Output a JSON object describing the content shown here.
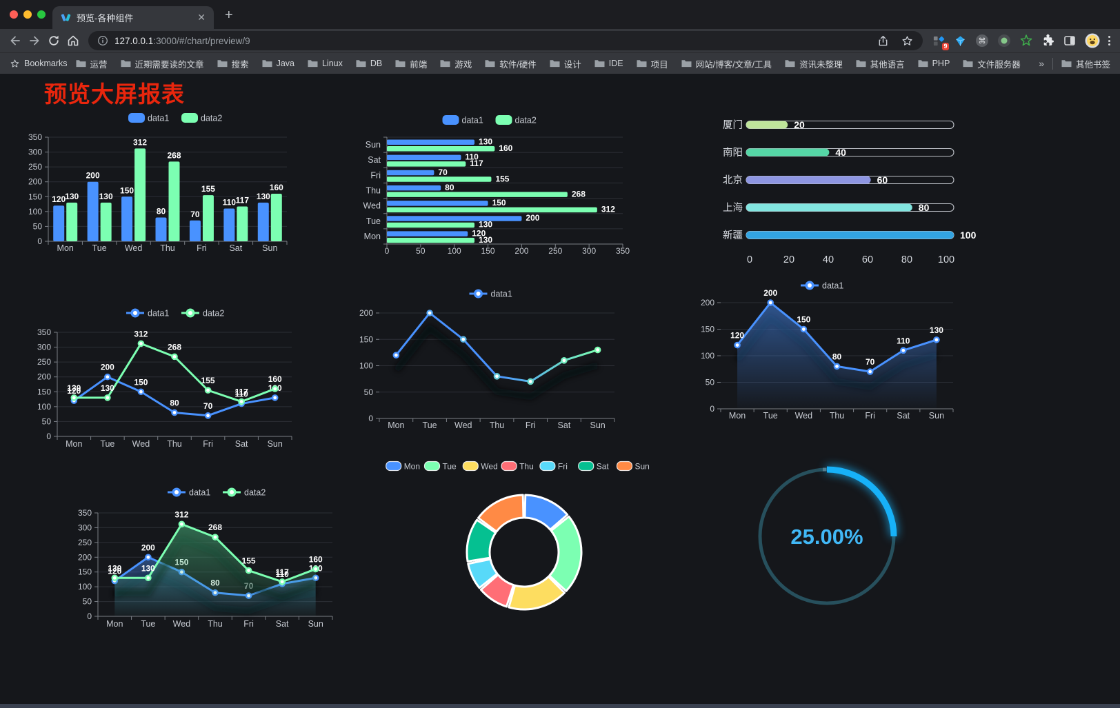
{
  "browser": {
    "traffic_lights": [
      "#ff5f57",
      "#febc2e",
      "#28c840"
    ],
    "tab": {
      "title": "预览-各种组件",
      "close_icon": "✕",
      "new_tab_icon": "+"
    },
    "address": {
      "host": "127.0.0.1",
      "rest": ":3000/#/chart/preview/9"
    },
    "bookmarks_label": "Bookmarks",
    "bookmarks": [
      "运营",
      "近期需要读的文章",
      "搜索",
      "Java",
      "Linux",
      "DB",
      "前端",
      "游戏",
      "软件/硬件",
      "设计",
      "IDE",
      "项目",
      "网站/博客/文章/工具",
      "资讯未整理",
      "其他语言",
      "PHP",
      "文件服务器"
    ],
    "bookmarks_overflow": "»",
    "other_bookmarks": "其他书签",
    "extension_badge": "9",
    "theme": {
      "frame": "#1c1d21",
      "toolbar": "#35373c",
      "field": "#202125"
    }
  },
  "page": {
    "title": "预览大屏报表",
    "title_color": "#e9260d",
    "background": "#15171b",
    "accent_blue": "#4992ff",
    "accent_green": "#7cffb2"
  },
  "chart_data": [
    {
      "id": "c1",
      "type": "bar",
      "title": "",
      "legend_position": "top",
      "categories": [
        "Mon",
        "Tue",
        "Wed",
        "Thu",
        "Fri",
        "Sat",
        "Sun"
      ],
      "series": [
        {
          "name": "data1",
          "color": "#4992ff",
          "values": [
            120,
            200,
            150,
            80,
            70,
            110,
            130
          ]
        },
        {
          "name": "data2",
          "color": "#7cffb2",
          "values": [
            130,
            130,
            312,
            268,
            155,
            117,
            160
          ]
        }
      ],
      "ylim": [
        0,
        350
      ],
      "ystep": 50,
      "labels": true,
      "grid": true
    },
    {
      "id": "c2",
      "type": "bar-horizontal",
      "title": "",
      "legend_position": "top",
      "categories": [
        "Mon",
        "Tue",
        "Wed",
        "Thu",
        "Fri",
        "Sat",
        "Sun"
      ],
      "series": [
        {
          "name": "data1",
          "color": "#4992ff",
          "values": [
            120,
            200,
            150,
            80,
            70,
            110,
            130
          ]
        },
        {
          "name": "data2",
          "color": "#7cffb2",
          "values": [
            130,
            130,
            312,
            268,
            155,
            117,
            160
          ]
        }
      ],
      "xlim": [
        0,
        350
      ],
      "xstep": 50,
      "labels": true,
      "grid": true
    },
    {
      "id": "c3",
      "type": "progress",
      "title": "",
      "items": [
        {
          "label": "厦门",
          "value": 20,
          "color": "#bfe59b"
        },
        {
          "label": "南阳",
          "value": 40,
          "color": "#55d6a6"
        },
        {
          "label": "北京",
          "value": 60,
          "color": "#8e96e2"
        },
        {
          "label": "上海",
          "value": 80,
          "color": "#82e5e0"
        },
        {
          "label": "新疆",
          "value": 100,
          "color": "#33a4e2"
        }
      ],
      "xlim": [
        0,
        100
      ],
      "xticks": [
        0,
        20,
        40,
        60,
        80,
        100
      ]
    },
    {
      "id": "c4",
      "type": "line",
      "title": "",
      "legend_position": "top",
      "categories": [
        "Mon",
        "Tue",
        "Wed",
        "Thu",
        "Fri",
        "Sat",
        "Sun"
      ],
      "series": [
        {
          "name": "data1",
          "color": "#4992ff",
          "values": [
            120,
            200,
            150,
            80,
            70,
            110,
            130
          ]
        },
        {
          "name": "data2",
          "color": "#7cffb2",
          "values": [
            130,
            130,
            312,
            268,
            155,
            117,
            160
          ]
        }
      ],
      "ylim": [
        0,
        350
      ],
      "ystep": 50,
      "labels": true,
      "y_axis_line": true,
      "grid": true
    },
    {
      "id": "c5",
      "type": "line",
      "title": "",
      "legend_position": "top",
      "categories": [
        "Mon",
        "Tue",
        "Wed",
        "Thu",
        "Fri",
        "Sat",
        "Sun"
      ],
      "series": [
        {
          "name": "data1",
          "color": "#4992ff",
          "gradient": [
            "#4992ff",
            "#4992ff",
            "#7cffb2"
          ],
          "shadow": true,
          "values": [
            120,
            200,
            150,
            80,
            70,
            110,
            130
          ]
        }
      ],
      "ylim": [
        0,
        200
      ],
      "ystep": 50,
      "labels": false,
      "y_axis_line": false,
      "grid": true
    },
    {
      "id": "c6",
      "type": "line",
      "title": "",
      "legend_position": "top",
      "categories": [
        "Mon",
        "Tue",
        "Wed",
        "Thu",
        "Fri",
        "Sat",
        "Sun"
      ],
      "series": [
        {
          "name": "data1",
          "color": "#4992ff",
          "area": [
            "rgba(73,146,255,0.5)",
            "rgba(73,146,255,0.02)"
          ],
          "shadow": true,
          "values": [
            120,
            200,
            150,
            80,
            70,
            110,
            130
          ]
        }
      ],
      "ylim": [
        0,
        200
      ],
      "ystep": 50,
      "labels": true,
      "y_axis_line": false,
      "grid": true
    },
    {
      "id": "c7",
      "type": "line",
      "title": "",
      "legend_position": "top",
      "categories": [
        "Mon",
        "Tue",
        "Wed",
        "Thu",
        "Fri",
        "Sat",
        "Sun"
      ],
      "series": [
        {
          "name": "data1",
          "color": "#4992ff",
          "area": [
            "rgba(73,146,255,0.42)",
            "rgba(73,146,255,0.02)"
          ],
          "shadow": true,
          "values": [
            120,
            200,
            150,
            80,
            70,
            110,
            130
          ]
        },
        {
          "name": "data2",
          "color": "#7cffb2",
          "area": [
            "rgba(74,190,130,0.5)",
            "rgba(74,190,130,0.03)"
          ],
          "shadow": true,
          "values": [
            130,
            130,
            312,
            268,
            155,
            117,
            160
          ]
        }
      ],
      "ylim": [
        0,
        350
      ],
      "ystep": 50,
      "labels": true,
      "y_axis_line": true,
      "grid": true
    },
    {
      "id": "c8",
      "type": "pie",
      "title": "",
      "legend_position": "top",
      "categories": [
        "Mon",
        "Tue",
        "Wed",
        "Thu",
        "Fri",
        "Sat",
        "Sun"
      ],
      "values": [
        120,
        200,
        150,
        80,
        70,
        110,
        130
      ],
      "colors": [
        "#4992ff",
        "#7cffb2",
        "#fddd60",
        "#ff6e76",
        "#58d9f9",
        "#05c091",
        "#ff8a45"
      ],
      "donut": true
    },
    {
      "id": "c9",
      "type": "gauge",
      "title": "",
      "value": 25,
      "label": "25.00%",
      "color": "#17b1f8",
      "track": "#27505d",
      "text_color": "#41b8f6"
    }
  ]
}
